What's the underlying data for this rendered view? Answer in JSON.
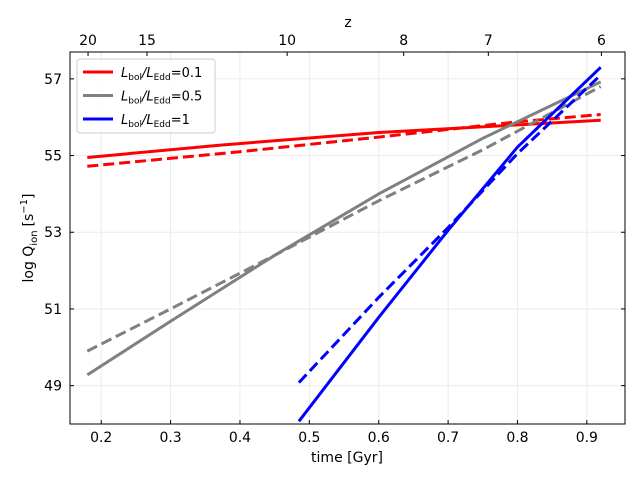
{
  "chart_data": {
    "type": "line",
    "xlabel": "time [Gyr]",
    "ylabel": "log Q",
    "ylabel_sub": "ion",
    "ylabel_unit": "[s",
    "ylabel_unit_exp": "−1",
    "ylabel_unit_close": "]",
    "top_axis_label": "z",
    "xlim": [
      0.155,
      0.955
    ],
    "ylim": [
      48.0,
      57.7
    ],
    "xticks": [
      0.2,
      0.3,
      0.4,
      0.5,
      0.6,
      0.7,
      0.8,
      0.9
    ],
    "xtick_labels": [
      "0.2",
      "0.3",
      "0.4",
      "0.5",
      "0.6",
      "0.7",
      "0.8",
      "0.9"
    ],
    "yticks": [
      49,
      51,
      53,
      55,
      57
    ],
    "ytick_labels": [
      "49",
      "51",
      "53",
      "55",
      "57"
    ],
    "top_ticks": [
      {
        "label": "20",
        "time": 0.181
      },
      {
        "label": "15",
        "time": 0.266
      },
      {
        "label": "10",
        "time": 0.468
      },
      {
        "label": "8",
        "time": 0.636
      },
      {
        "label": "7",
        "time": 0.758
      },
      {
        "label": "6",
        "time": 0.921
      }
    ],
    "grid": true,
    "legend_position": "top-left",
    "series": [
      {
        "name": "L_bol/L_Edd=0.1",
        "legend_main": "L",
        "legend_sub1": "bol",
        "legend_mid": "/L",
        "legend_sub2": "Edd",
        "legend_val": "=0.1",
        "color": "#ff0000",
        "solid": [
          [
            0.18,
            54.95
          ],
          [
            0.37,
            55.27
          ],
          [
            0.6,
            55.6
          ],
          [
            0.8,
            55.8
          ],
          [
            0.92,
            55.92
          ]
        ],
        "dashed": [
          [
            0.18,
            54.72
          ],
          [
            0.4,
            55.1
          ],
          [
            0.6,
            55.48
          ],
          [
            0.8,
            55.88
          ],
          [
            0.92,
            56.07
          ]
        ]
      },
      {
        "name": "L_bol/L_Edd=0.5",
        "legend_main": "L",
        "legend_sub1": "bol",
        "legend_mid": "/L",
        "legend_sub2": "Edd",
        "legend_val": "=0.5",
        "color": "#808080",
        "solid": [
          [
            0.18,
            49.28
          ],
          [
            0.3,
            50.68
          ],
          [
            0.45,
            52.4
          ],
          [
            0.6,
            54.0
          ],
          [
            0.75,
            55.45
          ],
          [
            0.92,
            56.92
          ]
        ],
        "dashed": [
          [
            0.18,
            49.9
          ],
          [
            0.3,
            51.0
          ],
          [
            0.45,
            52.4
          ],
          [
            0.6,
            53.82
          ],
          [
            0.75,
            55.15
          ],
          [
            0.92,
            56.8
          ]
        ]
      },
      {
        "name": "L_bol/L_Edd=1",
        "legend_main": "L",
        "legend_sub1": "bol",
        "legend_mid": "/L",
        "legend_sub2": "Edd",
        "legend_val": "=1",
        "color": "#0000ff",
        "solid": [
          [
            0.485,
            48.07
          ],
          [
            0.6,
            50.78
          ],
          [
            0.7,
            53.05
          ],
          [
            0.8,
            55.22
          ],
          [
            0.92,
            57.3
          ]
        ],
        "dashed": [
          [
            0.485,
            49.08
          ],
          [
            0.6,
            51.3
          ],
          [
            0.7,
            53.12
          ],
          [
            0.8,
            55.05
          ],
          [
            0.92,
            57.1
          ]
        ]
      }
    ]
  }
}
